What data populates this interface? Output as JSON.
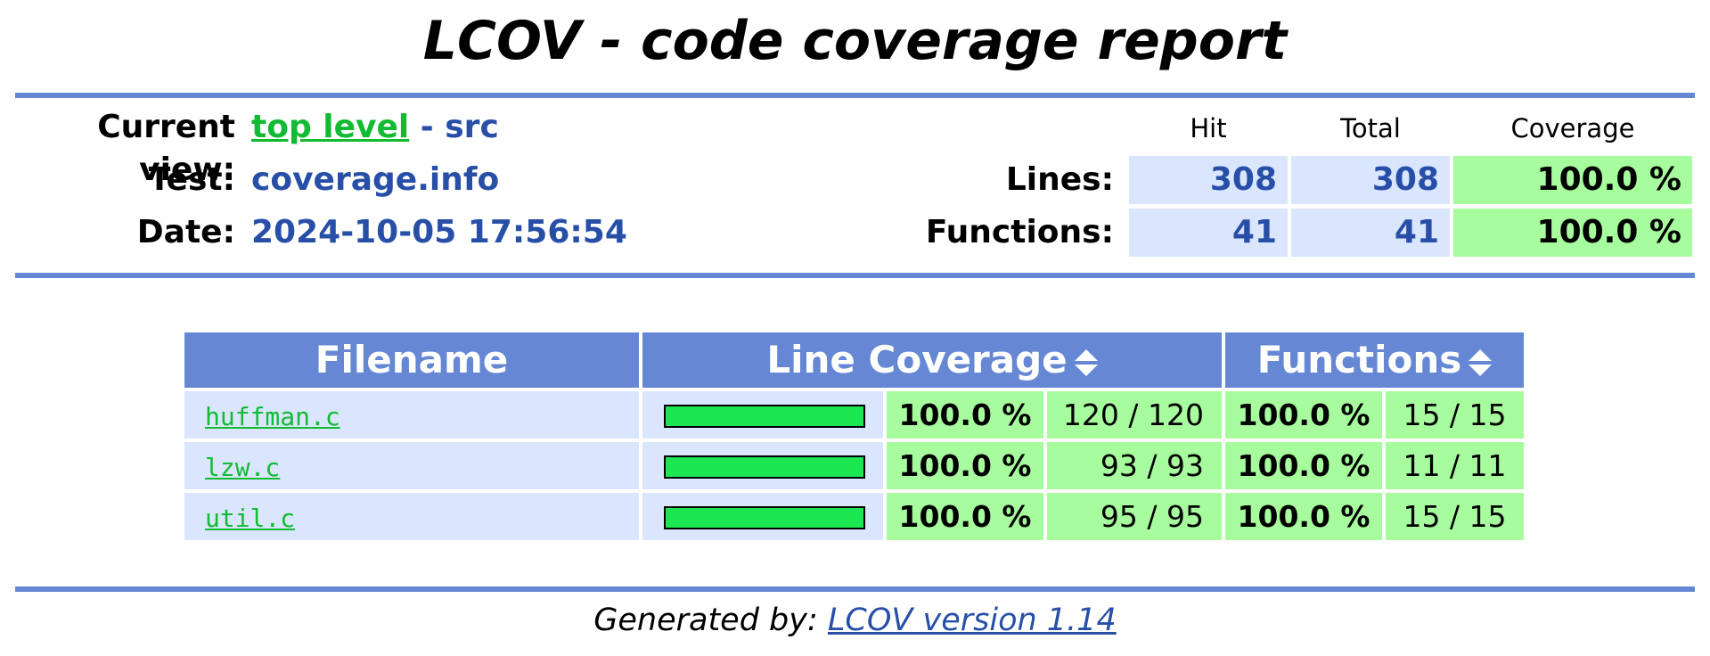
{
  "title": "LCOV - code coverage report",
  "header": {
    "current_view_label": "Current view:",
    "current_view_link": "top level",
    "current_view_rest": "- src",
    "test_label": "Test:",
    "test_value": "coverage.info",
    "date_label": "Date:",
    "date_value": "2024-10-05 17:56:54"
  },
  "summary": {
    "col_hit": "Hit",
    "col_total": "Total",
    "col_coverage": "Coverage",
    "lines_label": "Lines:",
    "lines_hit": "308",
    "lines_total": "308",
    "lines_coverage": "100.0 %",
    "functions_label": "Functions:",
    "functions_hit": "41",
    "functions_total": "41",
    "functions_coverage": "100.0 %"
  },
  "table": {
    "col_filename": "Filename",
    "col_line_coverage": "Line Coverage",
    "col_functions": "Functions",
    "rows": [
      {
        "file": "huffman.c",
        "line_fraction": 1.0,
        "line_pct": "100.0 %",
        "lines": "120 / 120",
        "func_pct": "100.0 %",
        "funcs": "15 / 15"
      },
      {
        "file": "lzw.c",
        "line_fraction": 1.0,
        "line_pct": "100.0 %",
        "lines": "93 / 93",
        "func_pct": "100.0 %",
        "funcs": "11 / 11"
      },
      {
        "file": "util.c",
        "line_fraction": 1.0,
        "line_pct": "100.0 %",
        "lines": "95 / 95",
        "func_pct": "100.0 %",
        "funcs": "15 / 15"
      }
    ]
  },
  "footer": {
    "generated_by": "Generated by:",
    "link": "LCOV version 1.14"
  },
  "colors": {
    "rule": "#6688d4",
    "header_bg": "#6688d4",
    "hit_bg": "#dae6fd",
    "coverage_bg": "#a7fc9d",
    "bar_fill": "#1de653",
    "link_green": "#11bb33",
    "value_blue": "#284fa8"
  }
}
